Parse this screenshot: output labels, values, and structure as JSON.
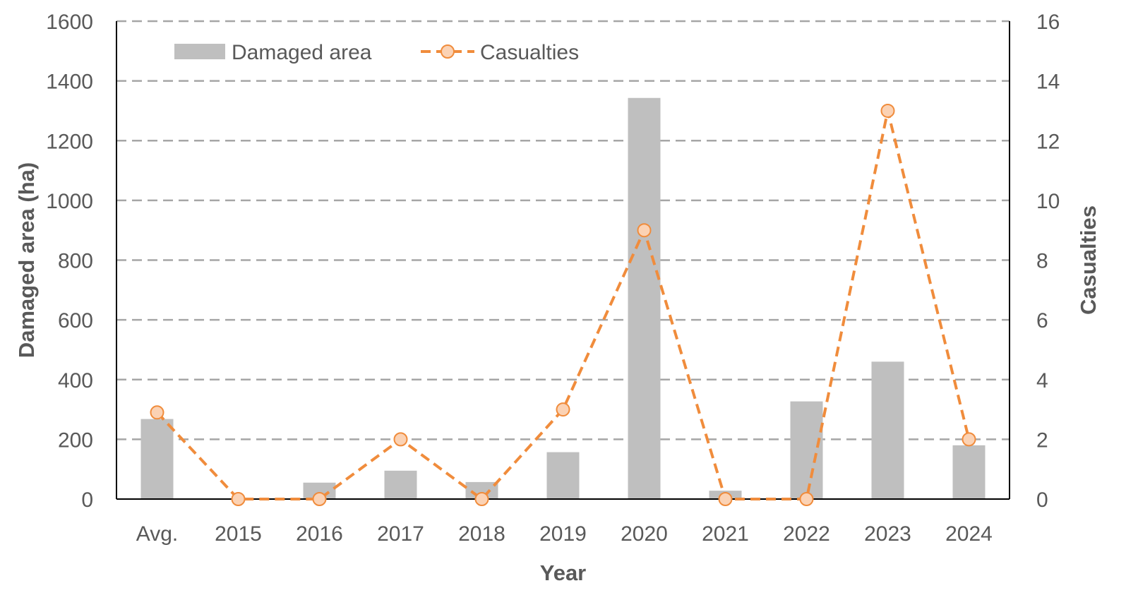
{
  "chart_data": {
    "type": "bar+line",
    "categories": [
      "Avg.",
      "2015",
      "2016",
      "2017",
      "2018",
      "2019",
      "2020",
      "2021",
      "2022",
      "2023",
      "2024"
    ],
    "series": [
      {
        "name": "Damaged area",
        "type": "bar",
        "axis": "left",
        "color": "#bfbfbf",
        "values": [
          268,
          0,
          55,
          95,
          57,
          157,
          1343,
          28,
          327,
          460,
          180
        ]
      },
      {
        "name": "Casualties",
        "type": "line",
        "axis": "right",
        "color": "#f08c3c",
        "marker_fill": "#fbd2b4",
        "line_style": "dashed",
        "values": [
          2.9,
          0,
          0,
          2,
          0,
          3,
          9,
          0,
          0,
          13,
          2
        ]
      }
    ],
    "xlabel": "Year",
    "ylabel": "Damaged area (ha)",
    "y2label": "Casualties",
    "ylim": [
      0,
      1600
    ],
    "y2lim": [
      0,
      16
    ],
    "yticks": [
      "0",
      "200",
      "400",
      "600",
      "800",
      "1000",
      "1200",
      "1400",
      "1600"
    ],
    "y2ticks": [
      "0",
      "2",
      "4",
      "6",
      "8",
      "10",
      "12",
      "14",
      "16"
    ],
    "grid": "horizontal-dashed",
    "legend_position": "top-left"
  }
}
